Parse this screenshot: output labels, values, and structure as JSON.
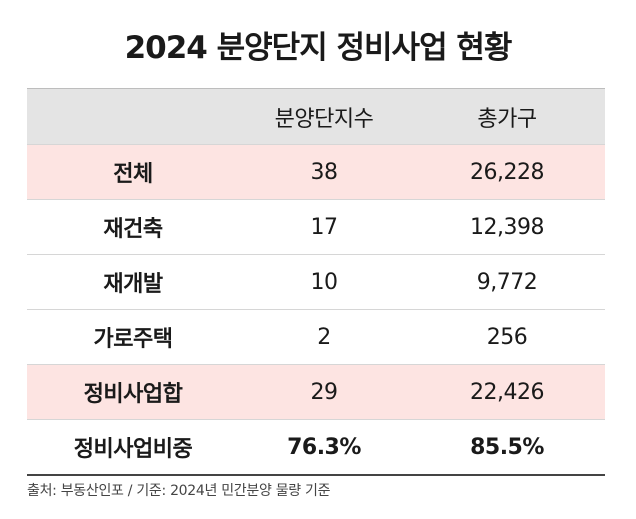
{
  "header": {
    "title": "2024 분양단지 정비사업 현황"
  },
  "table": {
    "columns": [
      "분양단지수",
      "총가구"
    ],
    "rows": [
      [
        "전체",
        "38",
        "26,228"
      ],
      [
        "재건축",
        "17",
        "12,398"
      ],
      [
        "재개발",
        "10",
        "9,772"
      ],
      [
        "가로주택",
        "2",
        "256"
      ],
      [
        "정비사업합",
        "29",
        "22,426"
      ],
      [
        "정비사업비중",
        "76.3%",
        "85.5%"
      ]
    ]
  },
  "footer": {
    "source": "출처: 부동산인포 / 기준: 2024년 민간분양 물량 기준"
  }
}
